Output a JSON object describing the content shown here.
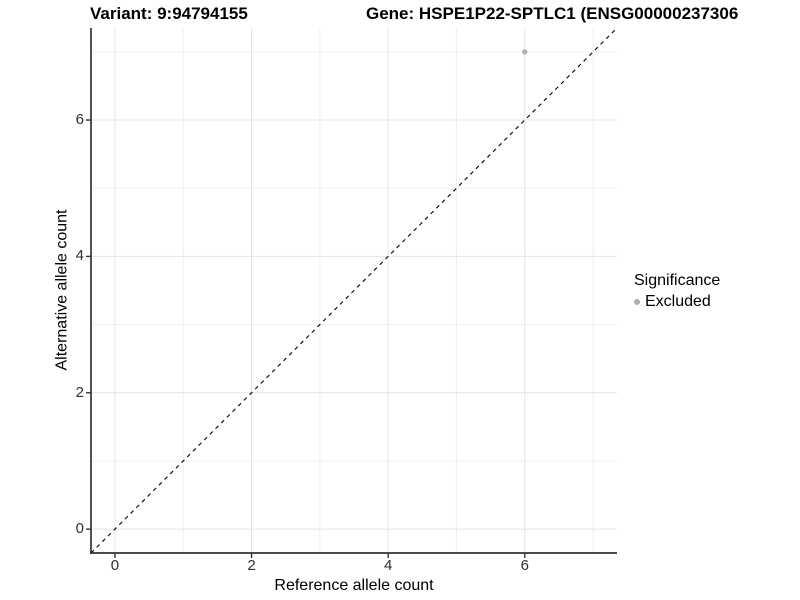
{
  "title": {
    "variant": "Variant: 9:94794155",
    "gene": "Gene: HSPE1P22-SPTLC1 (ENSG00000237306"
  },
  "axes": {
    "x": {
      "label": "Reference allele count"
    },
    "y": {
      "label": "Alternative allele count"
    }
  },
  "legend": {
    "title": "Significance",
    "items": [
      {
        "label": "Excluded",
        "color": "#b0b0b0"
      }
    ]
  },
  "colors": {
    "point": "#b0b0b0",
    "grid_major": "#e4e4e4",
    "grid_minor": "#f0f0f0",
    "axis_line": "#333333",
    "tick_mark": "#333333",
    "reference_line": "#000000"
  },
  "chart_data": {
    "type": "scatter",
    "title": "Variant: 9:94794155    Gene: HSPE1P22-SPTLC1 (ENSG00000237306",
    "xlabel": "Reference allele count",
    "ylabel": "Alternative allele count",
    "xlim": [
      -0.35,
      7.35
    ],
    "ylim": [
      -0.35,
      7.35
    ],
    "x_ticks": [
      0,
      2,
      4,
      6
    ],
    "y_ticks": [
      0,
      2,
      4,
      6
    ],
    "x_minor": [
      1,
      3,
      5,
      7
    ],
    "y_minor": [
      1,
      3,
      5,
      7
    ],
    "grid": "on",
    "legend_position": "right",
    "legend_title": "Significance",
    "series": [
      {
        "name": "Excluded",
        "color": "#b0b0b0",
        "points": [
          {
            "x": 6,
            "y": 7
          }
        ]
      }
    ],
    "reference_line": {
      "slope": 1,
      "intercept": 0,
      "linetype": "dashed"
    }
  }
}
